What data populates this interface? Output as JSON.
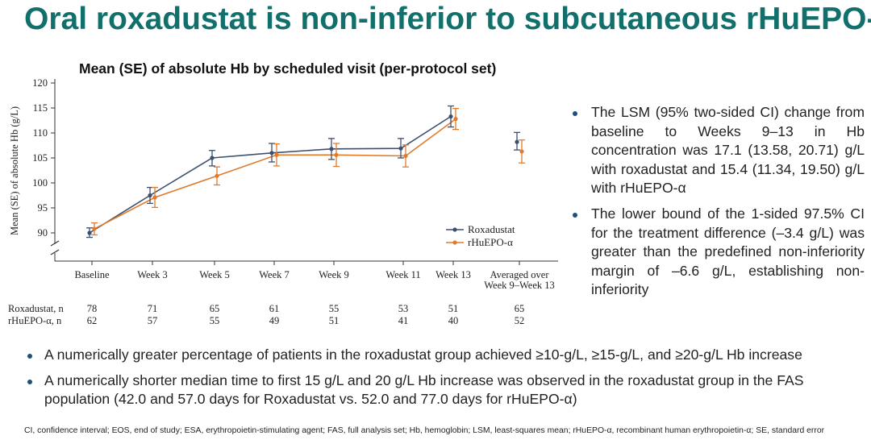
{
  "slide": {
    "title": "Oral roxadustat is non-inferior to subcutaneous rHuEPO-α",
    "title_color": "#11706b"
  },
  "chart_data": {
    "type": "line",
    "title": "Mean (SE) of absolute Hb by scheduled visit (per-protocol set)",
    "ylabel": "Mean (SE) of absolute Hb (g/L)",
    "xlabel": "",
    "ylim": [
      88,
      120
    ],
    "yticks": [
      "90",
      "95",
      "100",
      "105",
      "110",
      "115",
      "120"
    ],
    "y_axis_break": true,
    "grid": false,
    "legend_position": "right",
    "categories": [
      "Baseline",
      "Week 3",
      "Week 5",
      "Week 7",
      "Week 9",
      "Week 11",
      "Week 13",
      "Averaged over Week 9–Week 13"
    ],
    "category_lines": [
      [
        "Baseline"
      ],
      [
        "Week 3"
      ],
      [
        "Week 5"
      ],
      [
        "Week 7"
      ],
      [
        "Week 9"
      ],
      [
        "Week 11"
      ],
      [
        "Week 13"
      ],
      [
        "Averaged over",
        "Week 9–Week 13"
      ]
    ],
    "series": [
      {
        "name": "Roxadustat",
        "color": "#3d4f6e",
        "values": [
          90.0,
          97.5,
          105.0,
          106.0,
          106.8,
          106.9,
          113.3,
          108.2
        ],
        "se_low": [
          89.1,
          95.9,
          103.4,
          104.2,
          104.7,
          105.0,
          111.2,
          106.6
        ],
        "se_high": [
          91.0,
          99.1,
          106.5,
          107.9,
          108.9,
          108.9,
          115.4,
          110.1
        ],
        "n_label": "Roxadustat, n",
        "n": [
          "78",
          "71",
          "65",
          "61",
          "55",
          "53",
          "51",
          "65"
        ]
      },
      {
        "name": "rHuEPO-α",
        "color": "#e07b2c",
        "values": [
          90.8,
          97.1,
          101.4,
          105.6,
          105.6,
          105.4,
          112.8,
          106.3
        ],
        "se_low": [
          89.6,
          95.1,
          99.6,
          103.4,
          103.3,
          103.2,
          110.7,
          104.0
        ],
        "se_high": [
          92.0,
          99.1,
          103.2,
          107.8,
          107.9,
          107.6,
          114.9,
          108.6
        ],
        "n_label": "rHuEPO-α, n",
        "n": [
          "62",
          "57",
          "55",
          "49",
          "51",
          "41",
          "40",
          "52"
        ]
      }
    ]
  },
  "right_bullets": [
    "The LSM (95% two-sided CI) change from baseline to Weeks 9–13 in Hb concentration was 17.1 (13.58, 20.71) g/L with roxadustat and 15.4 (11.34, 19.50) g/L with rHuEPO-α",
    "The lower bound of the 1-sided 97.5% CI for the treatment difference (–3.4 g/L) was greater than the predefined non-inferiority margin of –6.6 g/L, establishing non-inferiority"
  ],
  "bottom_bullets": [
    "A numerically greater percentage of patients in the roxadustat group achieved ≥10-g/L, ≥15-g/L, and ≥20-g/L Hb increase",
    "A numerically shorter median time to first 15 g/L and 20 g/L Hb increase was observed in the roxadustat group in the FAS population (42.0 and 57.0 days for Roxadustat vs. 52.0 and 77.0 days for rHuEPO-α)"
  ],
  "footnote": "CI, confidence interval; EOS, end of study; ESA, erythropoietin-stimulating agent; FAS, full analysis set; Hb, hemoglobin; LSM, least-squares mean; rHuEPO-α, recombinant human erythropoietin-α; SE, standard error",
  "bullet_color": "#1f4e79"
}
